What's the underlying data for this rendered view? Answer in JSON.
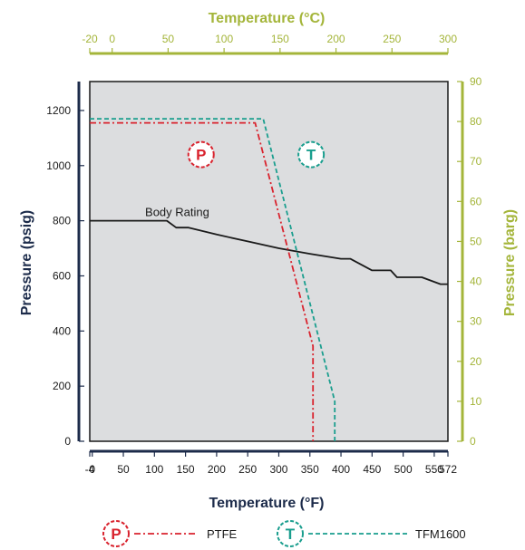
{
  "chart_data": {
    "type": "line",
    "top_axis": {
      "title": "Temperature (°C)",
      "range": [
        -20,
        300
      ],
      "ticks": [
        "-20",
        "0",
        "50",
        "100",
        "150",
        "200",
        "250",
        "300"
      ],
      "tick_values": [
        -20,
        0,
        50,
        100,
        150,
        200,
        250,
        300
      ]
    },
    "bottom_axis": {
      "title": "Temperature (°F)",
      "range": [
        -4,
        572
      ],
      "ticks": [
        "-4",
        "0",
        "50",
        "100",
        "150",
        "200",
        "250",
        "300",
        "350",
        "400",
        "450",
        "500",
        "550",
        "572"
      ],
      "tick_values": [
        -4,
        0,
        50,
        100,
        150,
        200,
        250,
        300,
        350,
        400,
        450,
        500,
        550,
        572
      ]
    },
    "left_axis": {
      "title": "Pressure (psig)",
      "range": [
        0,
        1305
      ],
      "ticks": [
        "0",
        "200",
        "400",
        "600",
        "800",
        "1000",
        "1200"
      ],
      "tick_values": [
        0,
        200,
        400,
        600,
        800,
        1000,
        1200
      ]
    },
    "right_axis": {
      "title": "Pressure (barg)",
      "range": [
        0,
        90
      ],
      "ticks": [
        "0",
        "10",
        "20",
        "30",
        "40",
        "50",
        "60",
        "70",
        "80",
        "90"
      ],
      "tick_values": [
        0,
        10,
        20,
        30,
        40,
        50,
        60,
        70,
        80,
        90
      ]
    },
    "series": [
      {
        "name": "Body Rating",
        "color": "#1a1a1a",
        "style": "solid",
        "points": [
          [
            -4,
            800
          ],
          [
            120,
            800
          ],
          [
            135,
            775
          ],
          [
            155,
            775
          ],
          [
            200,
            750
          ],
          [
            250,
            725
          ],
          [
            300,
            700
          ],
          [
            350,
            680
          ],
          [
            400,
            662
          ],
          [
            415,
            662
          ],
          [
            450,
            620
          ],
          [
            480,
            620
          ],
          [
            490,
            595
          ],
          [
            530,
            595
          ],
          [
            560,
            570
          ],
          [
            572,
            570
          ]
        ]
      },
      {
        "name": "PTFE",
        "color": "#d9232e",
        "style": "dashdot",
        "points": [
          [
            -4,
            1155
          ],
          [
            262,
            1155
          ],
          [
            355,
            345
          ],
          [
            355,
            0
          ]
        ]
      },
      {
        "name": "TFM1600",
        "color": "#1a9e8e",
        "style": "dashed",
        "points": [
          [
            -4,
            1170
          ],
          [
            275,
            1170
          ],
          [
            390,
            145
          ],
          [
            390,
            0
          ]
        ]
      }
    ],
    "annotations": [
      {
        "text": "Body Rating",
        "x": 85,
        "y": 830
      },
      {
        "text": "P",
        "x": 175,
        "y": 1040,
        "color": "#d9232e"
      },
      {
        "text": "T",
        "x": 352,
        "y": 1040,
        "color": "#1a9e8e"
      }
    ],
    "legend": {
      "placement": "bottom",
      "entries": [
        {
          "badge": "P",
          "label": "PTFE",
          "color": "#d9232e",
          "style": "dashdot"
        },
        {
          "badge": "T",
          "label": "TFM1600",
          "color": "#1a9e8e",
          "style": "dashed"
        }
      ]
    },
    "grid": false,
    "plot_background": "#dcdddf",
    "colors": {
      "celsius_axis": "#a4b53a",
      "fahrenheit_axis": "#1c2b4a",
      "psig_axis": "#1c2b4a",
      "barg_axis": "#a4b53a",
      "frame": "#1a1a1a"
    }
  }
}
